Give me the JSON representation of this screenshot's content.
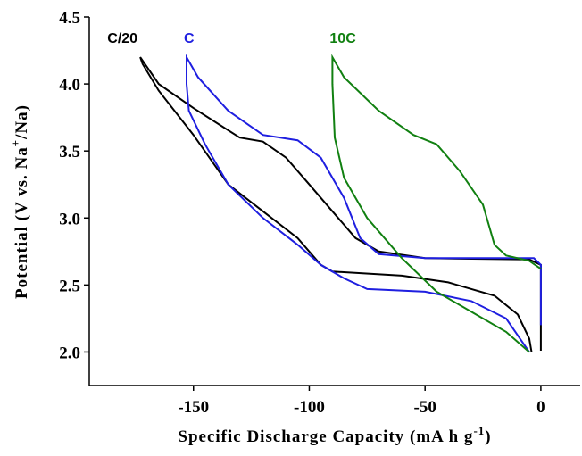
{
  "chart_data": {
    "type": "line",
    "xlabel": [
      "Specific Discharge Capacity (mA h g",
      "-1",
      ")"
    ],
    "ylabel": [
      "Potential (V vs. Na",
      "+",
      "/Na)"
    ],
    "xlim": [
      -195,
      17
    ],
    "xticks": [
      -150,
      -100,
      -50,
      0
    ],
    "ylim": [
      1.75,
      4.5
    ],
    "yticks": [
      {
        "value": 2,
        "label": "2.0"
      },
      {
        "value": 2.5,
        "label": "2.5"
      },
      {
        "value": 3,
        "label": "3.0"
      },
      {
        "value": 3.5,
        "label": "3.5"
      },
      {
        "value": 4,
        "label": "4.0"
      },
      {
        "value": 4.5,
        "label": "4.5"
      }
    ],
    "series": [
      {
        "name": "C/20",
        "color": "#000000",
        "x": [
          0,
          0,
          -5,
          -50,
          -70,
          -80,
          -90,
          -100,
          -110,
          -120,
          -130,
          -150,
          -165,
          -173,
          -172,
          -165,
          -150,
          -135,
          -120,
          -105,
          -95,
          -90,
          -60,
          -40,
          -20,
          -10,
          -5,
          -4
        ],
        "values": [
          2.01,
          2.65,
          2.69,
          2.7,
          2.75,
          2.85,
          3.05,
          3.25,
          3.45,
          3.57,
          3.6,
          3.82,
          4.0,
          4.2,
          4.15,
          3.95,
          3.62,
          3.25,
          3.05,
          2.85,
          2.65,
          2.6,
          2.57,
          2.52,
          2.42,
          2.28,
          2.1,
          2.0
        ]
      },
      {
        "name": "C",
        "color": "#1f1fe0",
        "x": [
          0,
          0,
          -3,
          -50,
          -70,
          -78,
          -85,
          -95,
          -105,
          -120,
          -135,
          -148,
          -153,
          -153,
          -152,
          -145,
          -135,
          -120,
          -105,
          -95,
          -85,
          -75,
          -50,
          -30,
          -15,
          -5
        ],
        "values": [
          2.2,
          2.65,
          2.7,
          2.7,
          2.73,
          2.85,
          3.15,
          3.45,
          3.58,
          3.62,
          3.8,
          4.05,
          4.2,
          4.0,
          3.8,
          3.55,
          3.25,
          3.0,
          2.8,
          2.65,
          2.55,
          2.47,
          2.45,
          2.38,
          2.25,
          2.0
        ]
      },
      {
        "name": "10C",
        "color": "#118011",
        "x": [
          0,
          -5,
          -15,
          -20,
          -25,
          -35,
          -45,
          -55,
          -70,
          -85,
          -90,
          -90,
          -89,
          -85,
          -75,
          -60,
          -45,
          -30,
          -15,
          -5
        ],
        "values": [
          2.62,
          2.68,
          2.72,
          2.8,
          3.1,
          3.35,
          3.55,
          3.62,
          3.8,
          4.05,
          4.2,
          4.0,
          3.6,
          3.3,
          3.0,
          2.7,
          2.45,
          2.3,
          2.15,
          2.0
        ]
      }
    ]
  }
}
